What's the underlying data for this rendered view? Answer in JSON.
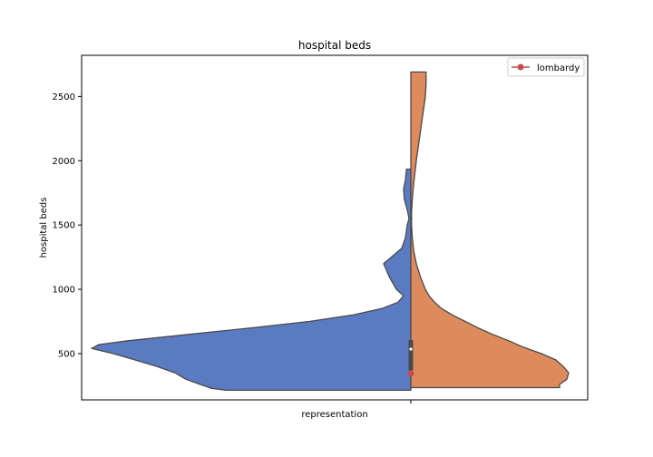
{
  "chart_data": {
    "type": "violin",
    "title": "hospital beds",
    "xlabel": "representation",
    "ylabel": "hospital beds",
    "x_tick_labels": [
      ""
    ],
    "ylim": [
      140,
      2820
    ],
    "yticks": [
      500,
      1000,
      1500,
      2000,
      2500
    ],
    "ytick_labels": [
      "500",
      "1000",
      "1500",
      "2000",
      "2500"
    ],
    "grid": false,
    "legend": {
      "placement": "top-right",
      "entries": [
        {
          "label": "lombardy",
          "color": "#c44e52",
          "marker": "circle"
        }
      ]
    },
    "violin_halves": [
      {
        "side": "left",
        "color": "#5a7bc2",
        "range": [
          215,
          1935
        ],
        "width_profile": [
          [
            215,
            0.0
          ],
          [
            215,
            0.51
          ],
          [
            230,
            0.55
          ],
          [
            260,
            0.58
          ],
          [
            300,
            0.62
          ],
          [
            350,
            0.65
          ],
          [
            400,
            0.7
          ],
          [
            450,
            0.76
          ],
          [
            500,
            0.82
          ],
          [
            540,
            0.88
          ],
          [
            570,
            0.86
          ],
          [
            600,
            0.78
          ],
          [
            650,
            0.61
          ],
          [
            700,
            0.44
          ],
          [
            750,
            0.28
          ],
          [
            800,
            0.16
          ],
          [
            850,
            0.08
          ],
          [
            900,
            0.035
          ],
          [
            950,
            0.02
          ],
          [
            1000,
            0.04
          ],
          [
            1100,
            0.06
          ],
          [
            1200,
            0.075
          ],
          [
            1260,
            0.05
          ],
          [
            1320,
            0.025
          ],
          [
            1400,
            0.015
          ],
          [
            1500,
            0.01
          ],
          [
            1550,
            0.005
          ],
          [
            1620,
            0.01
          ],
          [
            1700,
            0.018
          ],
          [
            1780,
            0.02
          ],
          [
            1850,
            0.015
          ],
          [
            1935,
            0.012
          ],
          [
            1935,
            0.0
          ]
        ]
      },
      {
        "side": "right",
        "color": "#dd8a5c",
        "range": [
          235,
          2690
        ],
        "width_profile": [
          [
            235,
            0.0
          ],
          [
            235,
            0.41
          ],
          [
            260,
            0.41
          ],
          [
            300,
            0.43
          ],
          [
            350,
            0.435
          ],
          [
            400,
            0.42
          ],
          [
            450,
            0.4
          ],
          [
            500,
            0.36
          ],
          [
            550,
            0.31
          ],
          [
            600,
            0.27
          ],
          [
            650,
            0.225
          ],
          [
            700,
            0.185
          ],
          [
            750,
            0.15
          ],
          [
            800,
            0.115
          ],
          [
            850,
            0.085
          ],
          [
            900,
            0.065
          ],
          [
            950,
            0.05
          ],
          [
            1000,
            0.04
          ],
          [
            1100,
            0.026
          ],
          [
            1200,
            0.015
          ],
          [
            1300,
            0.008
          ],
          [
            1400,
            0.004
          ],
          [
            1500,
            0.002
          ],
          [
            1600,
            0.002
          ],
          [
            1700,
            0.004
          ],
          [
            1800,
            0.007
          ],
          [
            1900,
            0.011
          ],
          [
            2000,
            0.015
          ],
          [
            2100,
            0.02
          ],
          [
            2200,
            0.025
          ],
          [
            2300,
            0.03
          ],
          [
            2400,
            0.035
          ],
          [
            2500,
            0.04
          ],
          [
            2600,
            0.042
          ],
          [
            2690,
            0.042
          ],
          [
            2690,
            0.0
          ]
        ]
      }
    ],
    "box": {
      "q1": 370,
      "median": 535,
      "q3": 605,
      "color": "#4a4a4a",
      "median_color": "#ffffff"
    },
    "point": {
      "label": "lombardy",
      "y": 345,
      "color": "#c44e52"
    }
  }
}
